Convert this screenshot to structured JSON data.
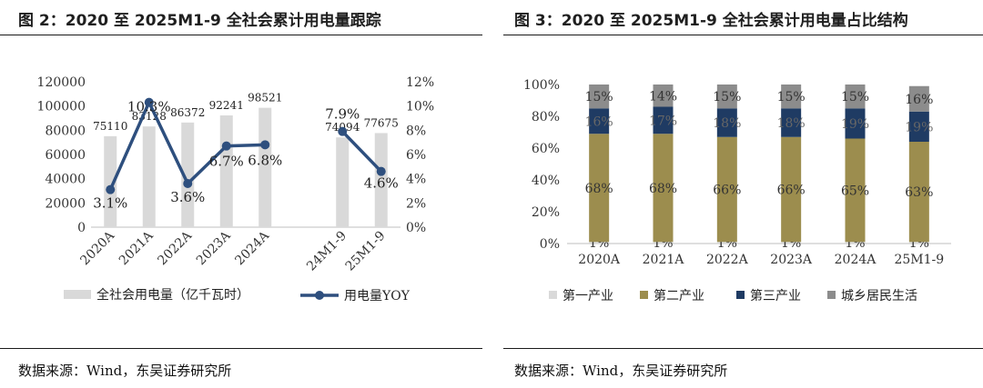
{
  "left": {
    "title": "图 2：2020 至 2025M1-9 全社会累计用电量跟踪",
    "source": "数据来源：Wind，东吴证券研究所",
    "chart_data": {
      "type": "bar+line",
      "categories": [
        "2020A",
        "2021A",
        "2022A",
        "2023A",
        "2024A",
        "",
        "24M1-9",
        "25M1-9"
      ],
      "series": [
        {
          "name": "全社会用电量（亿千瓦时）",
          "type": "bar",
          "axis": "left",
          "values": [
            75110,
            83128,
            86372,
            92241,
            98521,
            null,
            74094,
            77675
          ],
          "labels": [
            "75110",
            "83128",
            "86372",
            "92241",
            "98521",
            "",
            "74094",
            "77675"
          ]
        },
        {
          "name": "用电量YOY",
          "type": "line",
          "axis": "right",
          "values": [
            3.1,
            10.3,
            3.6,
            6.7,
            6.8,
            null,
            7.9,
            4.6
          ],
          "labels": [
            "3.1%",
            "10.3%",
            "3.6%",
            "6.7%",
            "6.8%",
            "",
            "7.9%",
            "4.6%"
          ]
        }
      ],
      "y_left": {
        "min": 0,
        "max": 120000,
        "step": 20000,
        "ticks": [
          "0",
          "20000",
          "40000",
          "60000",
          "80000",
          "100000",
          "120000"
        ]
      },
      "y_right": {
        "min": 0,
        "max": 12,
        "step": 2,
        "ticks": [
          "0%",
          "2%",
          "4%",
          "6%",
          "8%",
          "10%",
          "12%"
        ]
      },
      "legend": [
        "全社会用电量（亿千瓦时）",
        "用电量YOY"
      ],
      "legend_position": "bottom",
      "colors": {
        "bar": "#d9d9d9",
        "line": "#2e4f7e"
      }
    }
  },
  "right": {
    "title": "图 3：2020 至 2025M1-9 全社会累计用电量占比结构",
    "source": "数据来源：Wind，东吴证券研究所",
    "chart_data": {
      "type": "stacked_bar",
      "categories": [
        "2020A",
        "2021A",
        "2022A",
        "2023A",
        "2024A",
        "25M1-9"
      ],
      "series": [
        {
          "name": "第一产业",
          "values": [
            1,
            1,
            1,
            1,
            1,
            1
          ],
          "labels": [
            "1%",
            "1%",
            "1%",
            "1%",
            "1%",
            "1%"
          ]
        },
        {
          "name": "第二产业",
          "values": [
            68,
            68,
            66,
            66,
            65,
            63
          ],
          "labels": [
            "68%",
            "68%",
            "66%",
            "66%",
            "65%",
            "63%"
          ]
        },
        {
          "name": "第三产业",
          "values": [
            16,
            17,
            18,
            18,
            19,
            19
          ],
          "labels": [
            "16%",
            "17%",
            "18%",
            "18%",
            "19%",
            "19%"
          ]
        },
        {
          "name": "城乡居民生活",
          "values": [
            15,
            14,
            15,
            15,
            15,
            16
          ],
          "labels": [
            "15%",
            "14%",
            "15%",
            "15%",
            "15%",
            "16%"
          ]
        }
      ],
      "y": {
        "min": 0,
        "max": 100,
        "ticks": [
          "0%",
          "20%",
          "40%",
          "60%",
          "80%",
          "100%"
        ]
      },
      "legend": [
        "第一产业",
        "第二产业",
        "第三产业",
        "城乡居民生活"
      ],
      "legend_position": "bottom",
      "colors": [
        "#d9d9d9",
        "#9c8d4e",
        "#1f3b63",
        "#8c8c8c"
      ]
    }
  }
}
